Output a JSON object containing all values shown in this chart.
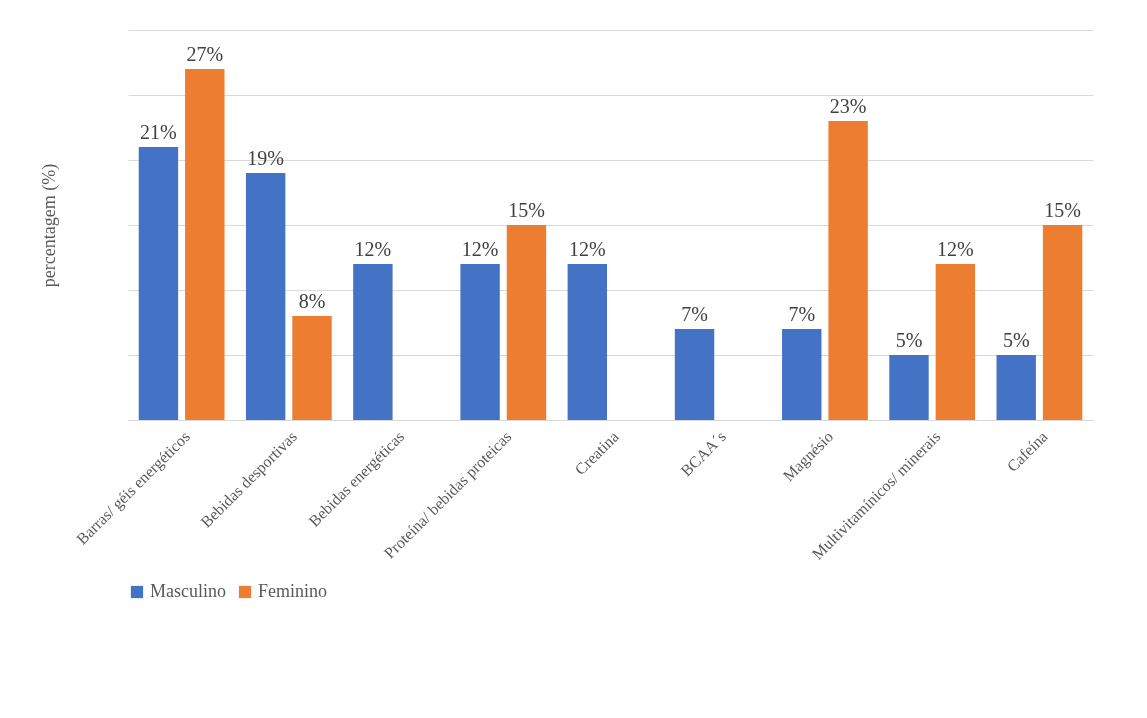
{
  "chart_data": {
    "type": "bar",
    "ylabel": "percentagem (%)",
    "categories": [
      "Barras/ géis energéticos",
      "Bebidas desportivas",
      "Bebidas energéticas",
      "Proteína/ bebidas proteicas",
      "Creatina",
      "BCAA´s",
      "Magnésio",
      "Multivitamínicos/ minerais",
      "Cafeína"
    ],
    "series": [
      {
        "name": "Masculino",
        "color": "#4472c4",
        "values": [
          21,
          19,
          12,
          12,
          12,
          7,
          7,
          5,
          5
        ],
        "value_labels": [
          "21%",
          "19%",
          "12%",
          "12%",
          "12%",
          "7%",
          "7%",
          "5%",
          "5%"
        ]
      },
      {
        "name": "Feminino",
        "color": "#ed7d31",
        "values": [
          27,
          8,
          null,
          15,
          null,
          null,
          23,
          12,
          15
        ],
        "value_labels": [
          "27%",
          "8%",
          null,
          "15%",
          null,
          null,
          "23%",
          "12%",
          "15%"
        ]
      }
    ],
    "ylim": [
      0,
      30
    ],
    "yticks": [
      {
        "value": 0,
        "label": null
      },
      {
        "value": 5,
        "label": null
      },
      {
        "value": 10,
        "label": null
      },
      {
        "value": 15,
        "label": null
      },
      {
        "value": 20,
        "label": null
      },
      {
        "value": 25,
        "label": null
      },
      {
        "value": 30,
        "label": null
      }
    ],
    "tick_labels": "x",
    "grid": "y",
    "legend": "bottom"
  }
}
